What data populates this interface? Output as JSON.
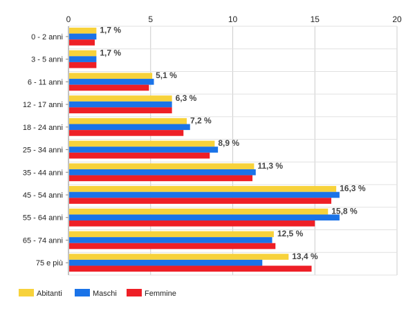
{
  "chart_data": {
    "type": "bar",
    "orientation": "horizontal",
    "categories": [
      "0 - 2 anni",
      "3 - 5 anni",
      "6 - 11 anni",
      "12 - 17 anni",
      "18 - 24 anni",
      "25 - 34 anni",
      "35 - 44 anni",
      "45 - 54 anni",
      "55 - 64 anni",
      "65 - 74 anni",
      "75 e più"
    ],
    "series": [
      {
        "name": "Abitanti",
        "color": "#f7d23b",
        "values": [
          1.7,
          1.7,
          5.1,
          6.3,
          7.2,
          8.9,
          11.3,
          16.3,
          15.8,
          12.5,
          13.4
        ]
      },
      {
        "name": "Maschi",
        "color": "#1a73e8",
        "values": [
          1.7,
          1.7,
          5.2,
          6.3,
          7.4,
          9.1,
          11.4,
          16.5,
          16.5,
          12.4,
          11.8
        ]
      },
      {
        "name": "Femmine",
        "color": "#ee1f26",
        "values": [
          1.6,
          1.7,
          4.9,
          6.3,
          7.0,
          8.6,
          11.2,
          16.0,
          15.0,
          12.6,
          14.8
        ]
      }
    ],
    "data_labels": [
      "1,7 %",
      "1,7 %",
      "5,1 %",
      "6,3 %",
      "7,2 %",
      "8,9 %",
      "11,3 %",
      "16,3 %",
      "15,8 %",
      "12,5 %",
      "13,4 %"
    ],
    "xlim": [
      0,
      20
    ],
    "x_ticks": [
      "0",
      "5",
      "10",
      "15",
      "20"
    ],
    "grid": true,
    "axis_position": "top",
    "legend_position": "bottom-left"
  }
}
